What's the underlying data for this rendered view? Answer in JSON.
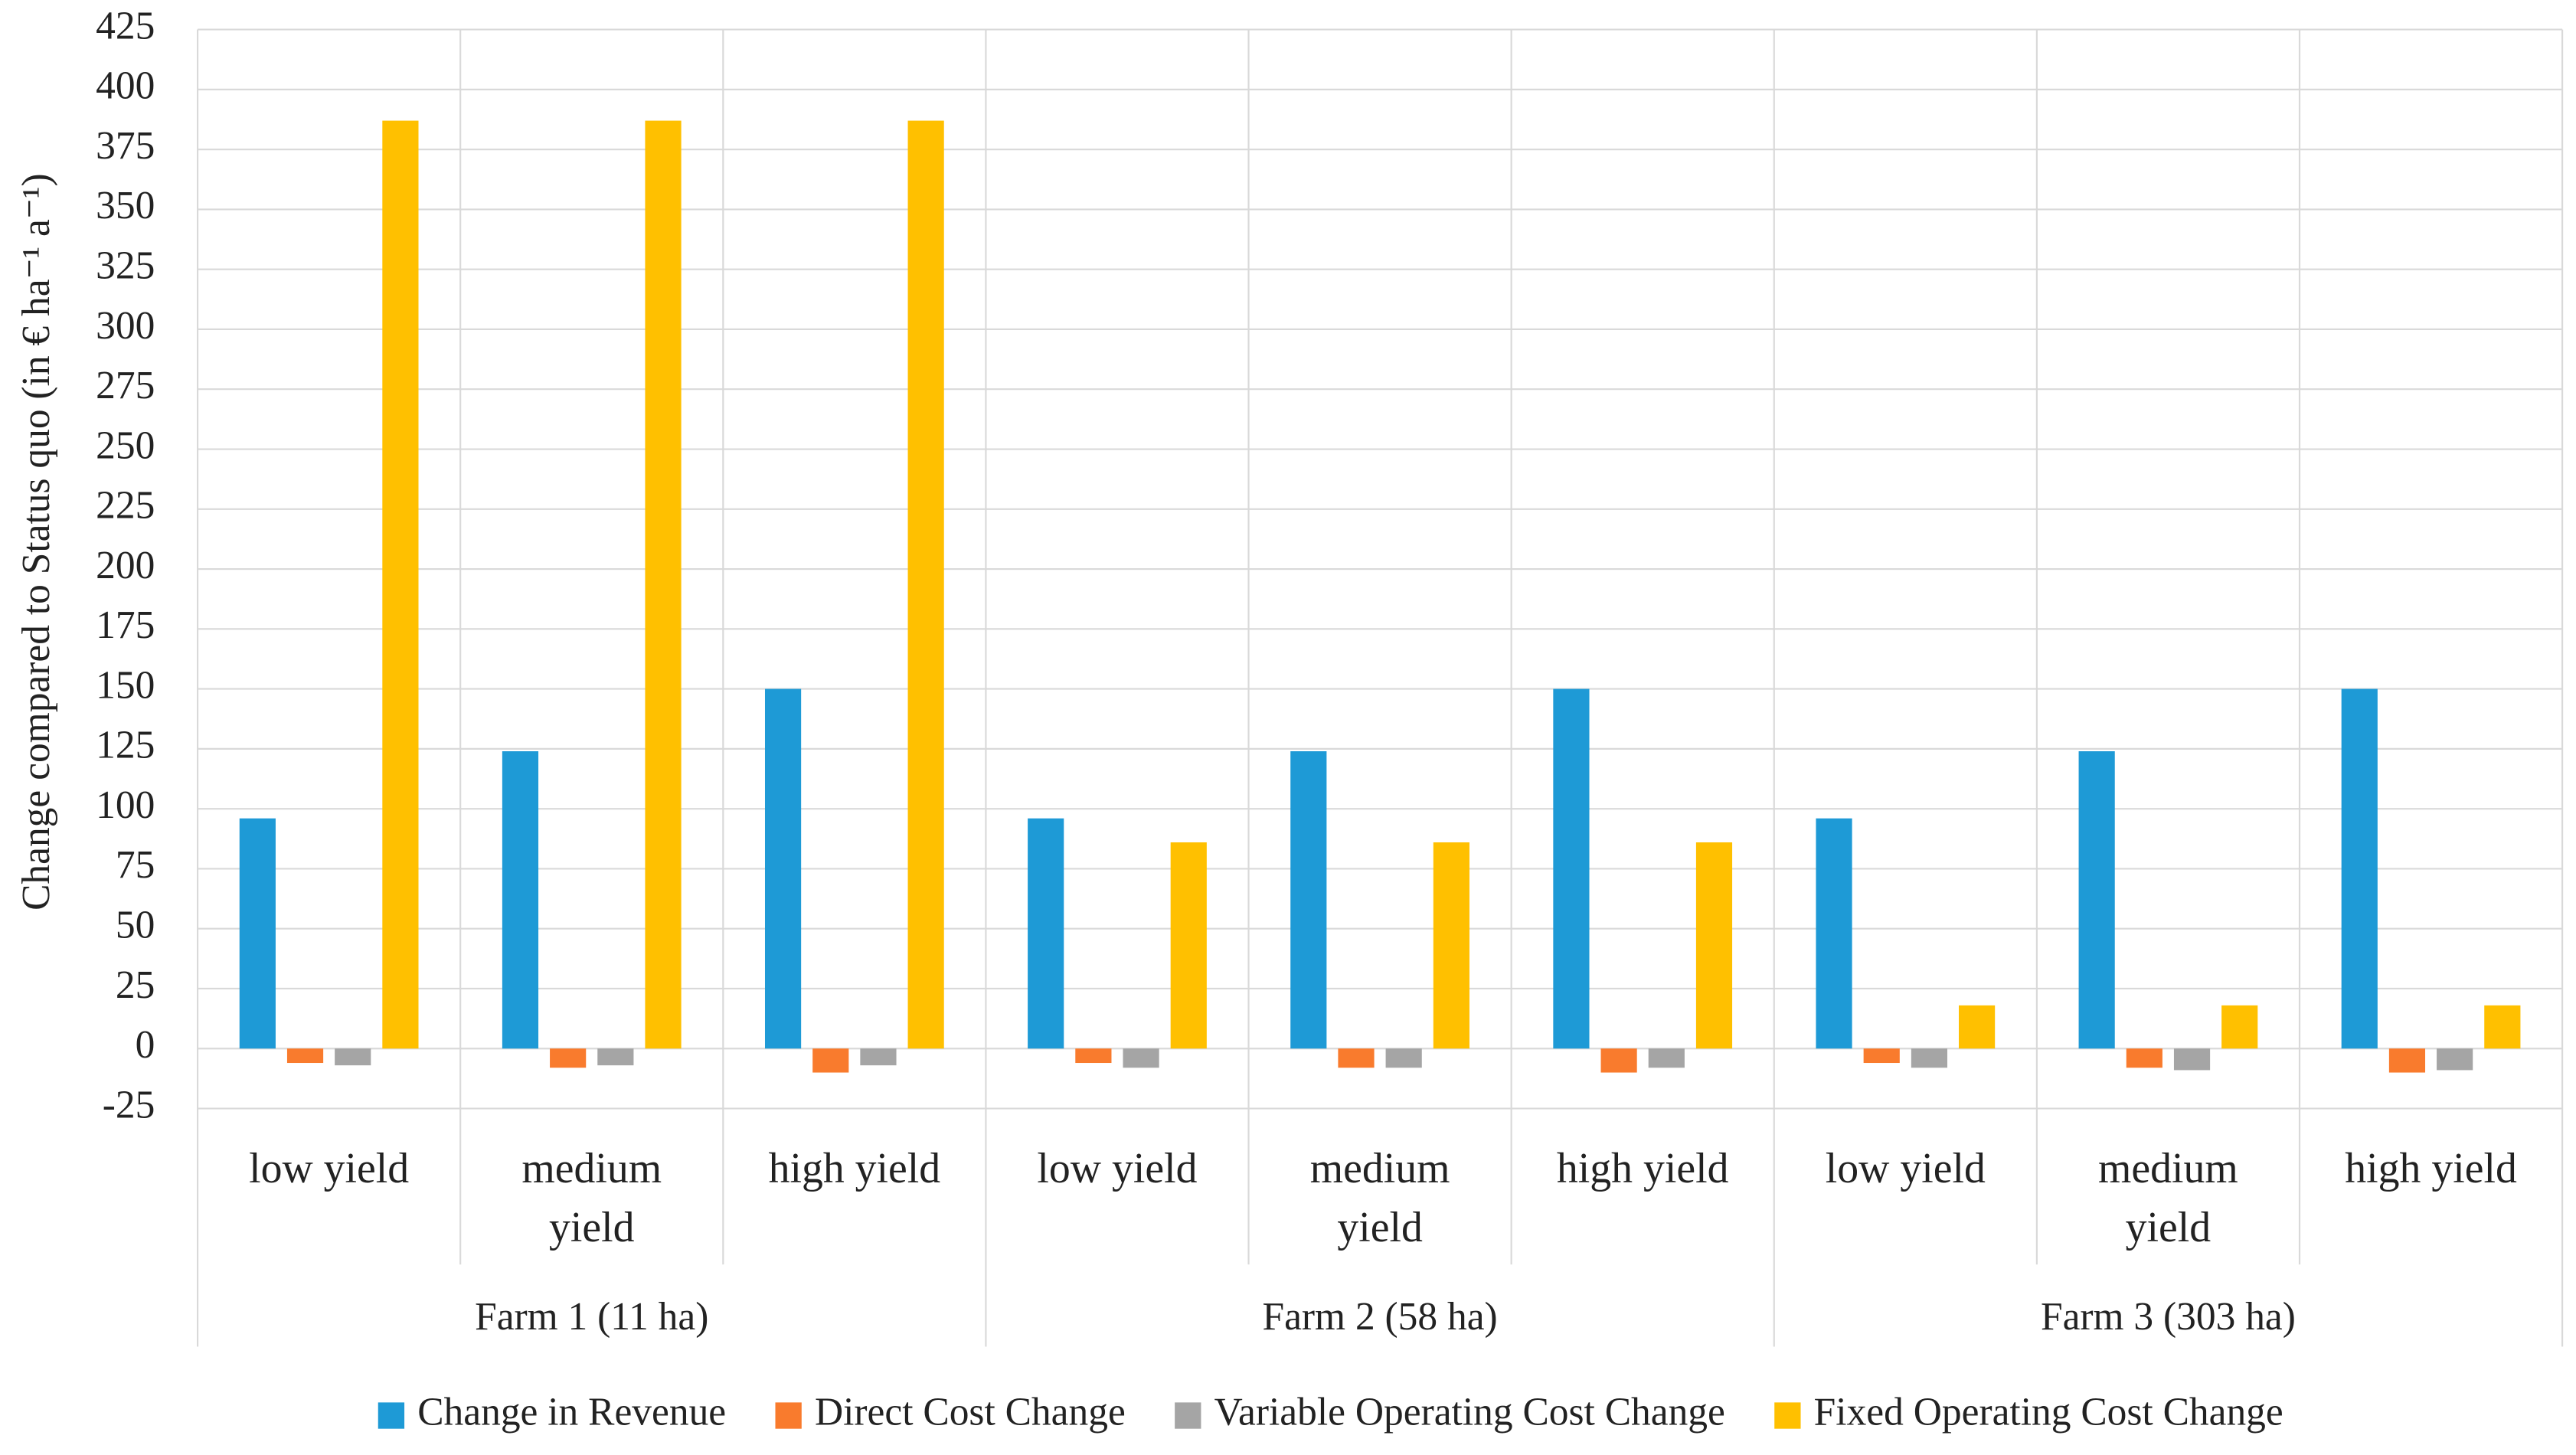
{
  "chart_data": {
    "type": "bar",
    "y_label": "Change compared to Status quo (in € ha⁻¹ a⁻¹)",
    "categories": [
      "low yield",
      "medium yield",
      "high yield",
      "low yield",
      "medium yield",
      "high yield",
      "low yield",
      "medium yield",
      "high yield"
    ],
    "groups": [
      "Farm 1 (11 ha)",
      "Farm 2 (58 ha)",
      "Farm 3 (303 ha)"
    ],
    "series": [
      {
        "name": "Change in Revenue",
        "color": "#1e9ad6",
        "values": [
          96,
          124,
          150,
          96,
          124,
          150,
          96,
          124,
          150
        ]
      },
      {
        "name": "Direct Cost Change",
        "color": "#f97b2d",
        "values": [
          -6,
          -8,
          -10,
          -6,
          -8,
          -10,
          -6,
          -8,
          -10
        ]
      },
      {
        "name": "Variable Operating Cost Change",
        "color": "#a5a5a5",
        "values": [
          -7,
          -7,
          -7,
          -8,
          -8,
          -8,
          -8,
          -9,
          -9
        ]
      },
      {
        "name": "Fixed Operating Cost Change",
        "color": "#ffc000",
        "values": [
          387,
          387,
          387,
          86,
          86,
          86,
          18,
          18,
          18
        ]
      }
    ],
    "ylim": [
      -25,
      425
    ],
    "yticks": [
      -25,
      0,
      25,
      50,
      75,
      100,
      125,
      150,
      175,
      200,
      225,
      250,
      275,
      300,
      325,
      350,
      375,
      400,
      425
    ],
    "grid": true,
    "legend": "bottom"
  }
}
